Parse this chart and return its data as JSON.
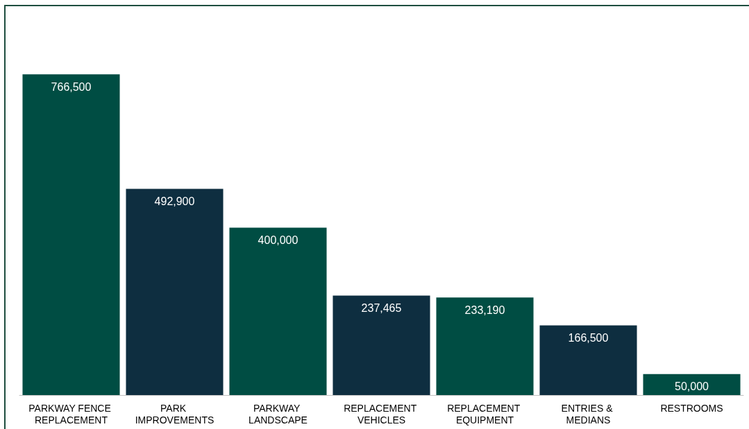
{
  "chart_data": {
    "type": "bar",
    "categories": [
      "PARKWAY FENCE REPLACEMENT",
      "PARK IMPROVEMENTS",
      "PARKWAY LANDSCAPE",
      "REPLACEMENT VEHICLES",
      "REPLACEMENT EQUIPMENT",
      "ENTRIES & MEDIANS",
      "RESTROOMS"
    ],
    "values": [
      766500,
      492900,
      400000,
      237465,
      233190,
      166500,
      50000
    ],
    "colors": [
      "#004d43",
      "#0e2e40",
      "#004d43",
      "#0e2e40",
      "#004d43",
      "#0e2e40",
      "#004d43"
    ],
    "value_labels": [
      "766,500",
      "492,900",
      "400,000",
      "237,465",
      "233,190",
      "166,500",
      "50,000"
    ]
  }
}
